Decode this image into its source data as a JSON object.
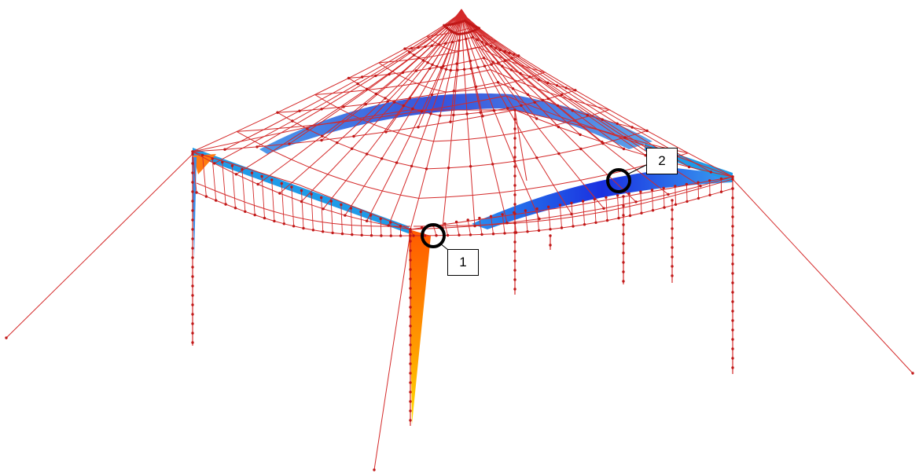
{
  "callouts": [
    {
      "label": "1"
    },
    {
      "label": "2"
    }
  ],
  "colors": {
    "cable": "#d42a2a",
    "beam": "#1e9be8",
    "beam_dark": "#1c3de0",
    "column_hot": "#ff6a00",
    "column_warm": "#ffd000",
    "marker": "#000000"
  }
}
